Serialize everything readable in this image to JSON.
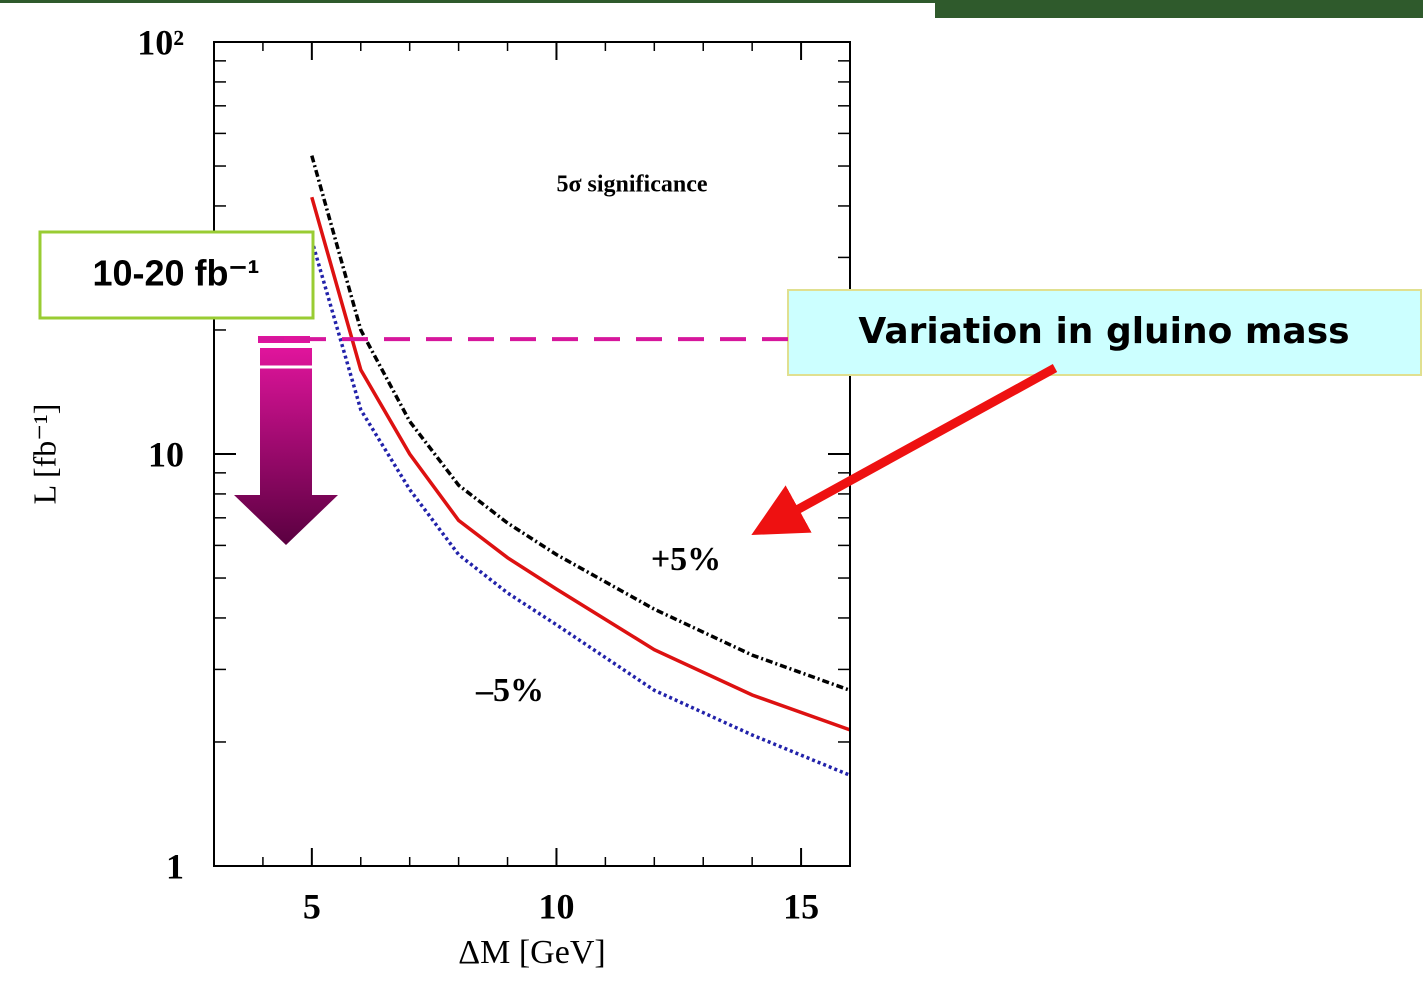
{
  "chart_data": {
    "type": "line",
    "title": "5σ significance",
    "xlabel": "ΔM [GeV]",
    "ylabel": "L [fb⁻¹]",
    "x": [
      5,
      6,
      7,
      8,
      9,
      10,
      12,
      14,
      16
    ],
    "series": [
      {
        "color": "#000000",
        "style": "dashdot",
        "values": [
          53,
          20,
          12,
          8.4,
          6.8,
          5.7,
          4.2,
          3.25,
          2.67
        ]
      },
      {
        "color": "#dd1111",
        "style": "solid",
        "values": [
          42,
          16,
          10,
          6.9,
          5.6,
          4.7,
          3.35,
          2.6,
          2.14
        ]
      },
      {
        "color": "#2222aa",
        "style": "dotted",
        "values": [
          33,
          12.8,
          8.2,
          5.7,
          4.6,
          3.85,
          2.67,
          2.08,
          1.66
        ]
      }
    ],
    "xlim": [
      3,
      16
    ],
    "xticks": [
      5,
      10,
      15
    ],
    "xminorticks": [
      4,
      6,
      7,
      8,
      9,
      11,
      12,
      13,
      14,
      16
    ],
    "ylim": [
      1,
      100
    ],
    "yticks": [
      1,
      10,
      {
        "value": 100,
        "label": "10²"
      }
    ],
    "yminorticks": [
      2,
      3,
      4,
      5,
      6,
      7,
      8,
      9,
      20,
      30,
      40,
      50,
      60,
      70,
      80,
      90
    ],
    "log_y": true,
    "threshold": {
      "value": 19,
      "color": "#d6169c",
      "label": "10-20 fb⁻¹"
    },
    "annotations": [
      "+5%",
      "–5%",
      "Variation in gluino mass"
    ]
  }
}
